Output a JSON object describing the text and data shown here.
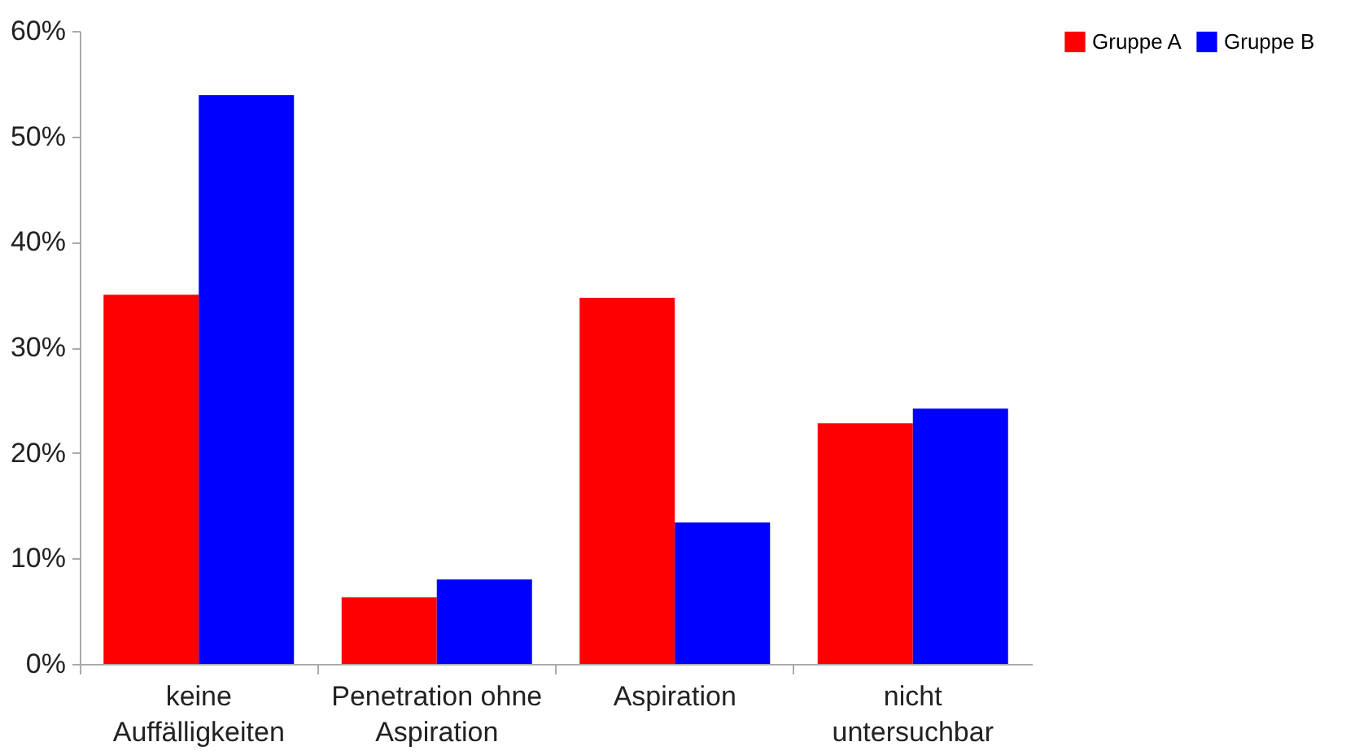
{
  "chart_data": {
    "type": "bar",
    "categories": [
      "keine Auffälligkeiten",
      "Penetration ohne Aspiration",
      "Aspiration",
      "nicht untersuchbar"
    ],
    "series": [
      {
        "name": "Gruppe A",
        "color": "#ff0000",
        "values": [
          35.0,
          6.3,
          34.7,
          22.8
        ]
      },
      {
        "name": "Gruppe B",
        "color": "#0000ff",
        "values": [
          53.9,
          8.0,
          13.4,
          24.2
        ]
      }
    ],
    "ylim": [
      0,
      60
    ],
    "yticks": [
      {
        "value": 0,
        "label": "0%"
      },
      {
        "value": 10,
        "label": "10%"
      },
      {
        "value": 20,
        "label": "20%"
      },
      {
        "value": 30,
        "label": "30%"
      },
      {
        "value": 40,
        "label": "40%"
      },
      {
        "value": 50,
        "label": "50%"
      },
      {
        "value": 60,
        "label": "60%"
      }
    ],
    "grid": false,
    "legend": "right"
  }
}
